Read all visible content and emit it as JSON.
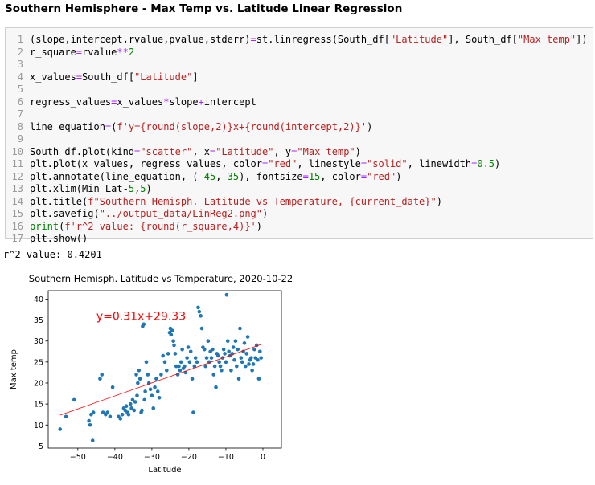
{
  "heading": "Southern Hemisphere - Max Temp vs. Latitude Linear Regression",
  "code": [
    {
      "n": "1",
      "t": "(slope,intercept,rvalue,pvalue,stderr)=st.linregress(South_df[\"Latitude\"], South_df[\"Max temp\"])"
    },
    {
      "n": "2",
      "t": "r_square=rvalue**2"
    },
    {
      "n": "3",
      "t": ""
    },
    {
      "n": "4",
      "t": "x_values=South_df[\"Latitude\"]"
    },
    {
      "n": "5",
      "t": ""
    },
    {
      "n": "6",
      "t": "regress_values=x_values*slope+intercept"
    },
    {
      "n": "7",
      "t": ""
    },
    {
      "n": "8",
      "t": "line_equation=(f'y={round(slope,2)}x+{round(intercept,2)}')"
    },
    {
      "n": "9",
      "t": ""
    },
    {
      "n": "10",
      "t": "South_df.plot(kind=\"scatter\", x=\"Latitude\", y=\"Max temp\")"
    },
    {
      "n": "11",
      "t": "plt.plot(x_values, regress_values, color=\"red\", linestyle=\"solid\", linewidth=0.5)"
    },
    {
      "n": "12",
      "t": "plt.annotate(line_equation, (-45, 35), fontsize=15, color=\"red\")"
    },
    {
      "n": "13",
      "t": "plt.xlim(Min_Lat-5,5)"
    },
    {
      "n": "14",
      "t": "plt.title(f\"Southern Hemisph. Latitude vs Temperature, {current_date}\")"
    },
    {
      "n": "15",
      "t": "plt.savefig(\"../output_data/LinReg2.png\")"
    },
    {
      "n": "16",
      "t": "print(f'r^2 value: {round(r_square,4)}')"
    },
    {
      "n": "17",
      "t": "plt.show()"
    }
  ],
  "output": "r^2 value: 0.4201",
  "chart_data": {
    "type": "scatter",
    "title": "Southern Hemisph. Latitude vs Temperature, 2020-10-22",
    "xlabel": "Latitude",
    "ylabel": "Max temp",
    "xlim": [
      -58,
      5
    ],
    "ylim": [
      4.5,
      42
    ],
    "xticks": [
      -50,
      -40,
      -30,
      -20,
      -10,
      0
    ],
    "yticks": [
      5,
      10,
      15,
      20,
      25,
      30,
      35,
      40
    ],
    "grid": false,
    "point_color": "#1f77b4",
    "regression": {
      "slope": 0.31,
      "intercept": 29.33,
      "color": "#ff0000",
      "x_range": [
        -54.8,
        -0.5
      ]
    },
    "annotation": {
      "text": "y=0.31x+29.33",
      "x": -45,
      "y": 35,
      "color": "#ff0000"
    },
    "points": [
      [
        -54.8,
        9.0
      ],
      [
        -53.2,
        12.0
      ],
      [
        -51.0,
        16.0
      ],
      [
        -47.0,
        11.0
      ],
      [
        -46.7,
        10.0
      ],
      [
        -46.4,
        12.5
      ],
      [
        -46.0,
        6.3
      ],
      [
        -45.8,
        13.0
      ],
      [
        -44.0,
        21.0
      ],
      [
        -43.5,
        22.0
      ],
      [
        -43.2,
        13.0
      ],
      [
        -42.5,
        12.5
      ],
      [
        -42.0,
        13.0
      ],
      [
        -41.3,
        12.0
      ],
      [
        -40.6,
        19.0
      ],
      [
        -39.0,
        12.0
      ],
      [
        -38.5,
        11.5
      ],
      [
        -38.0,
        12.5
      ],
      [
        -37.6,
        14.0
      ],
      [
        -37.2,
        13.5
      ],
      [
        -36.9,
        14.5
      ],
      [
        -36.6,
        13.0
      ],
      [
        -36.3,
        12.5
      ],
      [
        -35.8,
        15.0
      ],
      [
        -35.5,
        14.0
      ],
      [
        -35.2,
        16.0
      ],
      [
        -34.8,
        13.5
      ],
      [
        -34.5,
        15.5
      ],
      [
        -34.2,
        22.0
      ],
      [
        -34.0,
        17.0
      ],
      [
        -33.8,
        20.0
      ],
      [
        -33.5,
        23.0
      ],
      [
        -33.2,
        21.0
      ],
      [
        -32.9,
        13.0
      ],
      [
        -32.7,
        13.5
      ],
      [
        -32.5,
        33.5
      ],
      [
        -32.2,
        34.0
      ],
      [
        -32.0,
        16.0
      ],
      [
        -31.8,
        18.0
      ],
      [
        -31.5,
        25.0
      ],
      [
        -31.1,
        22.0
      ],
      [
        -30.8,
        20.0
      ],
      [
        -30.4,
        18.5
      ],
      [
        -30.0,
        17.0
      ],
      [
        -29.6,
        14.0
      ],
      [
        -29.2,
        19.0
      ],
      [
        -28.8,
        21.0
      ],
      [
        -28.4,
        18.0
      ],
      [
        -28.0,
        16.5
      ],
      [
        -27.5,
        22.0
      ],
      [
        -27.0,
        26.5
      ],
      [
        -26.5,
        25.0
      ],
      [
        -26.0,
        23.0
      ],
      [
        -25.6,
        27.0
      ],
      [
        -25.2,
        32.0
      ],
      [
        -25.0,
        33.0
      ],
      [
        -24.8,
        31.5
      ],
      [
        -24.5,
        32.5
      ],
      [
        -24.2,
        30.0
      ],
      [
        -24.0,
        29.0
      ],
      [
        -23.7,
        27.0
      ],
      [
        -23.4,
        24.0
      ],
      [
        -23.0,
        22.0
      ],
      [
        -22.7,
        24.0
      ],
      [
        -22.4,
        23.0
      ],
      [
        -22.1,
        25.0
      ],
      [
        -21.8,
        28.0
      ],
      [
        -21.5,
        23.5
      ],
      [
        -21.2,
        24.0
      ],
      [
        -20.9,
        22.5
      ],
      [
        -20.5,
        26.0
      ],
      [
        -20.2,
        28.5
      ],
      [
        -19.8,
        25.0
      ],
      [
        -19.5,
        27.5
      ],
      [
        -19.1,
        21.0
      ],
      [
        -18.8,
        13.0
      ],
      [
        -18.5,
        24.0
      ],
      [
        -18.2,
        26.0
      ],
      [
        -17.8,
        25.0
      ],
      [
        -17.5,
        38.0
      ],
      [
        -17.2,
        37.0
      ],
      [
        -16.8,
        36.0
      ],
      [
        -16.5,
        33.0
      ],
      [
        -16.2,
        28.5
      ],
      [
        -15.8,
        28.0
      ],
      [
        -15.5,
        24.0
      ],
      [
        -15.2,
        26.0
      ],
      [
        -14.8,
        30.0
      ],
      [
        -14.5,
        25.0
      ],
      [
        -14.2,
        27.5
      ],
      [
        -13.9,
        26.0
      ],
      [
        -13.6,
        28.0
      ],
      [
        -13.3,
        22.0
      ],
      [
        -13.0,
        24.0
      ],
      [
        -12.7,
        19.0
      ],
      [
        -12.4,
        27.0
      ],
      [
        -12.1,
        26.5
      ],
      [
        -11.8,
        25.0
      ],
      [
        -11.5,
        24.0
      ],
      [
        -11.2,
        23.0
      ],
      [
        -10.9,
        26.0
      ],
      [
        -10.6,
        28.0
      ],
      [
        -10.3,
        27.0
      ],
      [
        -10.0,
        25.0
      ],
      [
        -9.8,
        41.0
      ],
      [
        -9.5,
        30.0
      ],
      [
        -9.2,
        27.5
      ],
      [
        -8.9,
        26.5
      ],
      [
        -8.6,
        23.0
      ],
      [
        -8.3,
        27.0
      ],
      [
        -8.0,
        28.5
      ],
      [
        -7.7,
        25.5
      ],
      [
        -7.4,
        30.0
      ],
      [
        -7.1,
        24.0
      ],
      [
        -6.8,
        28.0
      ],
      [
        -6.5,
        21.0
      ],
      [
        -6.2,
        33.0
      ],
      [
        -5.9,
        26.0
      ],
      [
        -5.6,
        25.0
      ],
      [
        -5.3,
        27.5
      ],
      [
        -5.0,
        29.5
      ],
      [
        -4.7,
        24.0
      ],
      [
        -4.4,
        27.0
      ],
      [
        -4.1,
        31.0
      ],
      [
        -3.8,
        24.5
      ],
      [
        -3.5,
        25.5
      ],
      [
        -3.2,
        26.0
      ],
      [
        -2.9,
        23.0
      ],
      [
        -2.6,
        24.5
      ],
      [
        -2.3,
        28.0
      ],
      [
        -2.0,
        26.0
      ],
      [
        -1.7,
        29.0
      ],
      [
        -1.4,
        25.5
      ],
      [
        -1.1,
        21.0
      ],
      [
        -0.8,
        27.5
      ],
      [
        -0.5,
        26.0
      ]
    ]
  }
}
